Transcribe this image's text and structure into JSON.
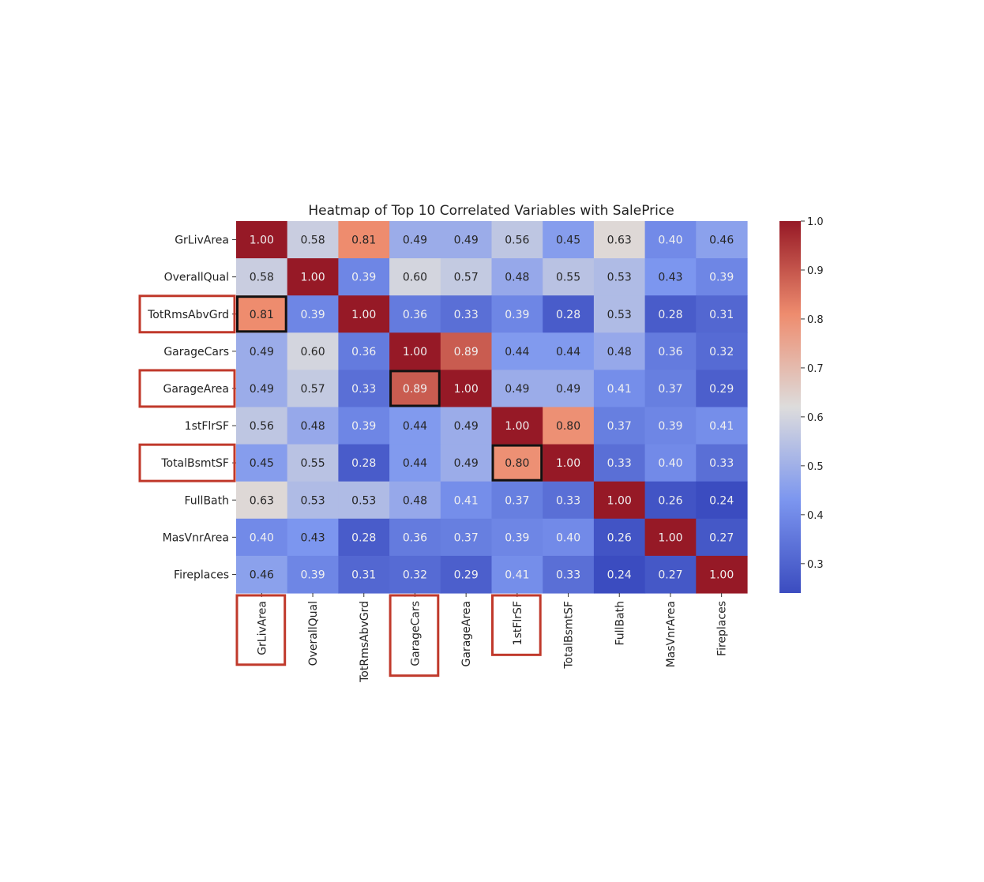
{
  "chart_data": {
    "type": "heatmap",
    "title": "Heatmap of Top 10 Correlated Variables with SalePrice",
    "row_labels": [
      "GrLivArea",
      "OverallQual",
      "TotRmsAbvGrd",
      "GarageCars",
      "GarageArea",
      "1stFlrSF",
      "TotalBsmtSF",
      "FullBath",
      "MasVnrArea",
      "Fireplaces"
    ],
    "col_labels": [
      "GrLivArea",
      "OverallQual",
      "TotRmsAbvGrd",
      "GarageCars",
      "GarageArea",
      "1stFlrSF",
      "TotalBsmtSF",
      "FullBath",
      "MasVnrArea",
      "Fireplaces"
    ],
    "values": [
      [
        1.0,
        0.58,
        0.81,
        0.49,
        0.49,
        0.56,
        0.45,
        0.63,
        0.4,
        0.46
      ],
      [
        0.58,
        1.0,
        0.39,
        0.6,
        0.57,
        0.48,
        0.55,
        0.53,
        0.43,
        0.39
      ],
      [
        0.81,
        0.39,
        1.0,
        0.36,
        0.33,
        0.39,
        0.28,
        0.53,
        0.28,
        0.31
      ],
      [
        0.49,
        0.6,
        0.36,
        1.0,
        0.89,
        0.44,
        0.44,
        0.48,
        0.36,
        0.32
      ],
      [
        0.49,
        0.57,
        0.33,
        0.89,
        1.0,
        0.49,
        0.49,
        0.41,
        0.37,
        0.29
      ],
      [
        0.56,
        0.48,
        0.39,
        0.44,
        0.49,
        1.0,
        0.8,
        0.37,
        0.39,
        0.41
      ],
      [
        0.45,
        0.55,
        0.28,
        0.44,
        0.49,
        0.8,
        1.0,
        0.33,
        0.4,
        0.33
      ],
      [
        0.63,
        0.53,
        0.53,
        0.48,
        0.41,
        0.37,
        0.33,
        1.0,
        0.26,
        0.24
      ],
      [
        0.4,
        0.43,
        0.28,
        0.36,
        0.37,
        0.39,
        0.4,
        0.26,
        1.0,
        0.27
      ],
      [
        0.46,
        0.39,
        0.31,
        0.32,
        0.29,
        0.41,
        0.33,
        0.24,
        0.27,
        1.0
      ]
    ],
    "value_format": "2 decimals",
    "colormap": "coolwarm",
    "color_range": [
      0.24,
      1.0
    ],
    "colorbar_ticks": [
      "1.0",
      "0.9",
      "0.8",
      "0.7",
      "0.6",
      "0.5",
      "0.4",
      "0.3"
    ],
    "colorbar_tick_values": [
      1.0,
      0.9,
      0.8,
      0.7,
      0.6,
      0.5,
      0.4,
      0.3
    ],
    "colorbar_placement": "right",
    "grid": false,
    "highlighted_cells": [
      [
        2,
        0
      ],
      [
        4,
        3
      ],
      [
        6,
        5
      ]
    ],
    "highlighted_cell_color": "#111111",
    "highlighted_row_labels": [
      "TotRmsAbvGrd",
      "GarageArea",
      "TotalBsmtSF"
    ],
    "highlighted_col_labels": [
      "GrLivArea",
      "GarageCars",
      "1stFlrSF"
    ],
    "highlight_label_color": "#c0392b"
  }
}
